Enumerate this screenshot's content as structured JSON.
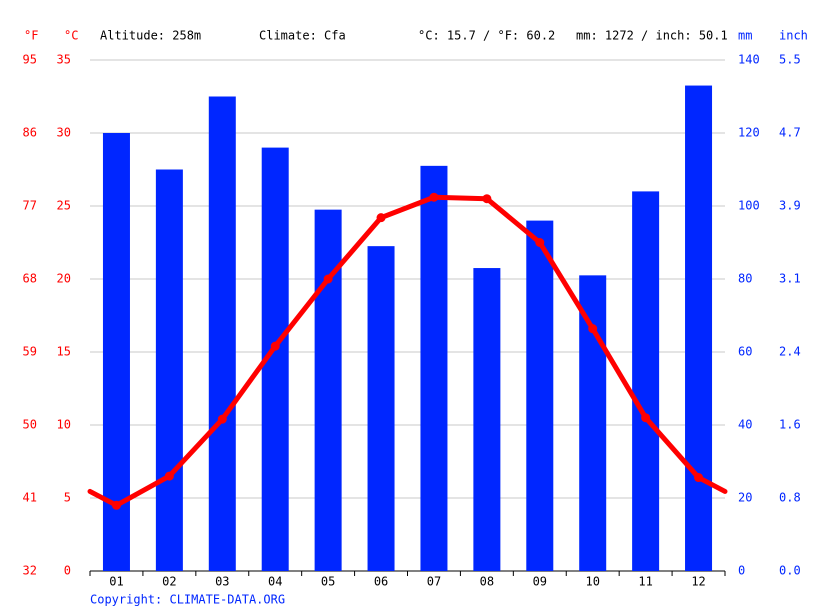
{
  "chart_data": {
    "type": "combo",
    "info": [
      "Altitude: 258m",
      "Climate: Cfa",
      "°C: 15.7 / °F: 60.2",
      "mm: 1272 / inch: 50.1"
    ],
    "copyright": "Copyright: CLIMATE-DATA.ORG",
    "categories": [
      "01",
      "02",
      "03",
      "04",
      "05",
      "06",
      "07",
      "08",
      "09",
      "10",
      "11",
      "12"
    ],
    "grid": true,
    "axes": [
      {
        "label": "°F",
        "position": "left-outer",
        "color": "#ff0000",
        "lim": [
          32,
          95
        ],
        "ticks": [
          32,
          41,
          50,
          59,
          68,
          77,
          86,
          95
        ]
      },
      {
        "label": "°C",
        "position": "left-inner",
        "color": "#ff0000",
        "lim": [
          0,
          35
        ],
        "ticks": [
          0,
          5,
          10,
          15,
          20,
          25,
          30,
          35
        ]
      },
      {
        "label": "mm",
        "position": "right-inner",
        "color": "#0026ff",
        "lim": [
          0,
          140
        ],
        "ticks": [
          0,
          20,
          40,
          60,
          80,
          100,
          120,
          140
        ]
      },
      {
        "label": "inch",
        "position": "right-outer",
        "color": "#0026ff",
        "lim": [
          0,
          5.512
        ],
        "ticks": [
          {
            "value": 0,
            "label": "0.0"
          },
          {
            "value": 0.787,
            "label": "0.8"
          },
          {
            "value": 1.575,
            "label": "1.6"
          },
          {
            "value": 2.362,
            "label": "2.4"
          },
          {
            "value": 3.1496,
            "label": "3.1"
          },
          {
            "value": 3.937,
            "label": "3.9"
          },
          {
            "value": 4.724,
            "label": "4.7"
          },
          {
            "value": 5.512,
            "label": "5.5"
          }
        ]
      }
    ],
    "series": [
      {
        "type": "bar",
        "axis": 2,
        "color": "#0026ff",
        "values": [
          120,
          110,
          130,
          116,
          99,
          89,
          111,
          83,
          96,
          81,
          104,
          133
        ]
      },
      {
        "type": "line",
        "axis": 1,
        "color": "#ff0000",
        "values": [
          4.5,
          6.5,
          10.4,
          15.4,
          20.0,
          24.2,
          25.6,
          25.5,
          22.5,
          16.6,
          10.5,
          6.4
        ]
      }
    ]
  }
}
